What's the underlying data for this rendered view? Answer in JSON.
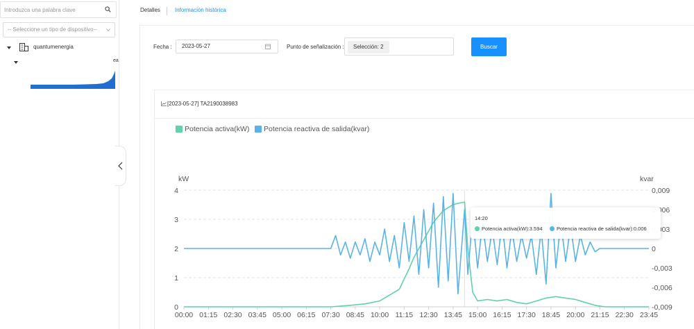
{
  "sidebar": {
    "search_placeholder": "Introduzca una palabra clave",
    "device_type_placeholder": "-- Seleccione un tipo de dispositivo--",
    "tree_root_label": "quantumenergia",
    "truncated_label": "ea"
  },
  "tabs": {
    "details": "Detalles",
    "history": "Información histórica"
  },
  "filters": {
    "date_label": "Fecha :",
    "date_value": "2023-05-27",
    "point_label": "Punto de señalización :",
    "selection_chip": "Selección: 2",
    "search_button": "Buscar"
  },
  "card": {
    "title": "[2023-05-27] TA2190038983"
  },
  "tooltip": {
    "time": "14:20",
    "active_label": "Potencia activa(kW):",
    "active_value": "3.594",
    "reactive_label": "Potencia reactiva de salida(kvar):",
    "reactive_value": "0.006"
  },
  "colors": {
    "accent": "#1890ff",
    "active_series": "#5ed2a9",
    "reactive_series": "#58b4e8"
  },
  "chart_data": {
    "type": "line",
    "title": "",
    "xlabel": "",
    "ylabel": "kW",
    "y2label": "kvar",
    "ylim": [
      0,
      4
    ],
    "y2lim": [
      -0.009,
      0.009
    ],
    "yticks": [
      "0",
      "1",
      "2",
      "3",
      "4"
    ],
    "y2ticks": [
      "-0,009",
      "-0,006",
      "-0,003",
      "0",
      "0,003",
      "0,006",
      "0,009"
    ],
    "xticks": [
      "00:00",
      "01:15",
      "02:30",
      "03:45",
      "05:00",
      "06:15",
      "07:30",
      "08:45",
      "10:00",
      "11:15",
      "12:30",
      "13:45",
      "15:00",
      "16:15",
      "17:30",
      "18:45",
      "20:00",
      "21:15",
      "22:30",
      "23:45"
    ],
    "x_start": "00:00",
    "x_end": "23:45",
    "grid": true,
    "legend_position": "top-left",
    "series": [
      {
        "name": "Potencia activa(kW)",
        "axis": "left",
        "color": "#5ed2a9",
        "points": [
          [
            "00:00",
            0
          ],
          [
            "07:30",
            0
          ],
          [
            "08:30",
            0.05
          ],
          [
            "09:15",
            0.1
          ],
          [
            "10:00",
            0.2
          ],
          [
            "10:30",
            0.4
          ],
          [
            "11:00",
            0.6
          ],
          [
            "11:30",
            1.3
          ],
          [
            "11:45",
            1.7
          ],
          [
            "12:00",
            2.0
          ],
          [
            "12:15",
            2.3
          ],
          [
            "12:30",
            2.6
          ],
          [
            "12:45",
            2.9
          ],
          [
            "13:00",
            3.1
          ],
          [
            "13:15",
            3.3
          ],
          [
            "13:30",
            3.4
          ],
          [
            "13:45",
            3.5
          ],
          [
            "14:00",
            3.55
          ],
          [
            "14:20",
            3.594
          ],
          [
            "14:30",
            2.0
          ],
          [
            "14:45",
            0.5
          ],
          [
            "15:00",
            0.2
          ],
          [
            "15:30",
            0.25
          ],
          [
            "16:00",
            0.2
          ],
          [
            "16:30",
            0.25
          ],
          [
            "17:00",
            0.15
          ],
          [
            "17:30",
            0.1
          ],
          [
            "18:00",
            0.2
          ],
          [
            "18:30",
            0.3
          ],
          [
            "19:00",
            0.35
          ],
          [
            "19:30",
            0.3
          ],
          [
            "20:00",
            0.25
          ],
          [
            "20:30",
            0.15
          ],
          [
            "21:00",
            0.05
          ],
          [
            "21:30",
            0
          ],
          [
            "23:45",
            0
          ]
        ]
      },
      {
        "name": "Potencia reactiva de salida(kvar)",
        "axis": "right",
        "color": "#58b4e8",
        "points": [
          [
            "00:00",
            0
          ],
          [
            "07:30",
            0
          ],
          [
            "07:45",
            0.002
          ],
          [
            "08:00",
            -0.001
          ],
          [
            "08:15",
            0.001
          ],
          [
            "08:30",
            -0.0015
          ],
          [
            "08:45",
            0.001
          ],
          [
            "09:00",
            -0.001
          ],
          [
            "09:15",
            0.0015
          ],
          [
            "09:30",
            -0.002
          ],
          [
            "09:45",
            0.001
          ],
          [
            "10:00",
            -0.001
          ],
          [
            "10:15",
            0.003
          ],
          [
            "10:30",
            -0.002
          ],
          [
            "10:45",
            0.002
          ],
          [
            "11:00",
            -0.003
          ],
          [
            "11:15",
            0.004
          ],
          [
            "11:30",
            -0.002
          ],
          [
            "11:45",
            0.005
          ],
          [
            "12:00",
            -0.004
          ],
          [
            "12:15",
            0.006
          ],
          [
            "12:30",
            -0.003
          ],
          [
            "12:45",
            0.007
          ],
          [
            "13:00",
            -0.006
          ],
          [
            "13:15",
            0.008
          ],
          [
            "13:30",
            -0.005
          ],
          [
            "13:45",
            0.0085
          ],
          [
            "14:00",
            -0.007
          ],
          [
            "14:20",
            0.006
          ],
          [
            "14:30",
            -0.004
          ],
          [
            "14:45",
            0.005
          ],
          [
            "15:00",
            -0.003
          ],
          [
            "15:15",
            0.004
          ],
          [
            "15:30",
            -0.002
          ],
          [
            "15:45",
            0.003
          ],
          [
            "16:00",
            -0.0025
          ],
          [
            "16:15",
            0.004
          ],
          [
            "16:30",
            -0.003
          ],
          [
            "16:45",
            0.003
          ],
          [
            "17:00",
            -0.002
          ],
          [
            "17:15",
            0.002
          ],
          [
            "17:30",
            -0.0015
          ],
          [
            "17:45",
            0.002
          ],
          [
            "18:00",
            -0.004
          ],
          [
            "18:15",
            0.003
          ],
          [
            "18:30",
            -0.0055
          ],
          [
            "18:45",
            0.0085
          ],
          [
            "19:00",
            -0.003
          ],
          [
            "19:15",
            0.004
          ],
          [
            "19:30",
            -0.002
          ],
          [
            "19:45",
            0.0035
          ],
          [
            "20:00",
            -0.002
          ],
          [
            "20:15",
            0.002
          ],
          [
            "20:30",
            -0.001
          ],
          [
            "20:45",
            0.001
          ],
          [
            "21:00",
            -0.0005
          ],
          [
            "21:15",
            0
          ],
          [
            "23:45",
            0
          ]
        ]
      }
    ]
  }
}
